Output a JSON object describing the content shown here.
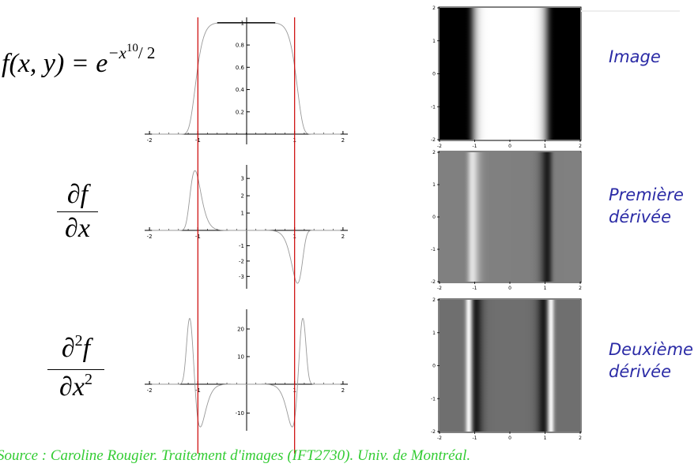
{
  "formulas": {
    "f": {
      "lhs": "f(x, y) = e",
      "exp_minus_x": "−x",
      "exp_power": "10",
      "exp_div": "/ 2"
    },
    "first": {
      "num": "∂f",
      "den": "∂x"
    },
    "second": {
      "num_d": "∂",
      "num_sup": "2",
      "num_f": "f",
      "den_dx": "∂x",
      "den_sup": "2"
    }
  },
  "labels": {
    "image": "Image",
    "first_a": "Première",
    "first_b": "dérivée",
    "second_a": "Deuxième",
    "second_b": "dérivée"
  },
  "source": "Source : Caroline Rougier. Traitement d'images (IFT2730). Univ. de Montréal.",
  "colors": {
    "curve": "#999999",
    "marker_line": "#cc0000",
    "label": "#2b2ba6",
    "source": "#33cc33"
  },
  "markers": {
    "x": [
      -1,
      1
    ]
  },
  "chart_data": [
    {
      "type": "line",
      "name": "f",
      "xlim": [
        -2.1,
        2.1
      ],
      "ylim": [
        0,
        1.02
      ],
      "xticks": [
        "-2",
        "-1",
        "1",
        "2"
      ],
      "yticks": [
        "0.2",
        "0.4",
        "0.6",
        "0.8",
        "1"
      ]
    },
    {
      "type": "line",
      "name": "df",
      "xlim": [
        -2.1,
        2.1
      ],
      "ylim": [
        -3.6,
        3.6
      ],
      "xticks": [
        "-2",
        "-1",
        "1",
        "2"
      ],
      "yticks": [
        "-3",
        "-2",
        "-1",
        "1",
        "2",
        "3"
      ]
    },
    {
      "type": "line",
      "name": "d2f",
      "xlim": [
        -2.1,
        2.1
      ],
      "ylim": [
        -15,
        26
      ],
      "xticks": [
        "-2",
        "-1",
        "1",
        "2"
      ],
      "yticks": [
        "-10",
        "10",
        "20"
      ]
    },
    {
      "type": "heatmap",
      "name": "image",
      "xticks": [
        "-2",
        "-1",
        "0",
        "1",
        "2"
      ],
      "yticks": [
        "2",
        "1",
        "0",
        "-1",
        "-2"
      ]
    },
    {
      "type": "heatmap",
      "name": "first-derivative",
      "xticks": [
        "-2",
        "-1",
        "0",
        "1",
        "2"
      ],
      "yticks": [
        "2",
        "1",
        "0",
        "-1",
        "-2"
      ]
    },
    {
      "type": "heatmap",
      "name": "second-derivative",
      "xticks": [
        "-2",
        "-1",
        "0",
        "1",
        "2"
      ],
      "yticks": [
        "2",
        "1",
        "0",
        "-1",
        "-2"
      ]
    }
  ]
}
